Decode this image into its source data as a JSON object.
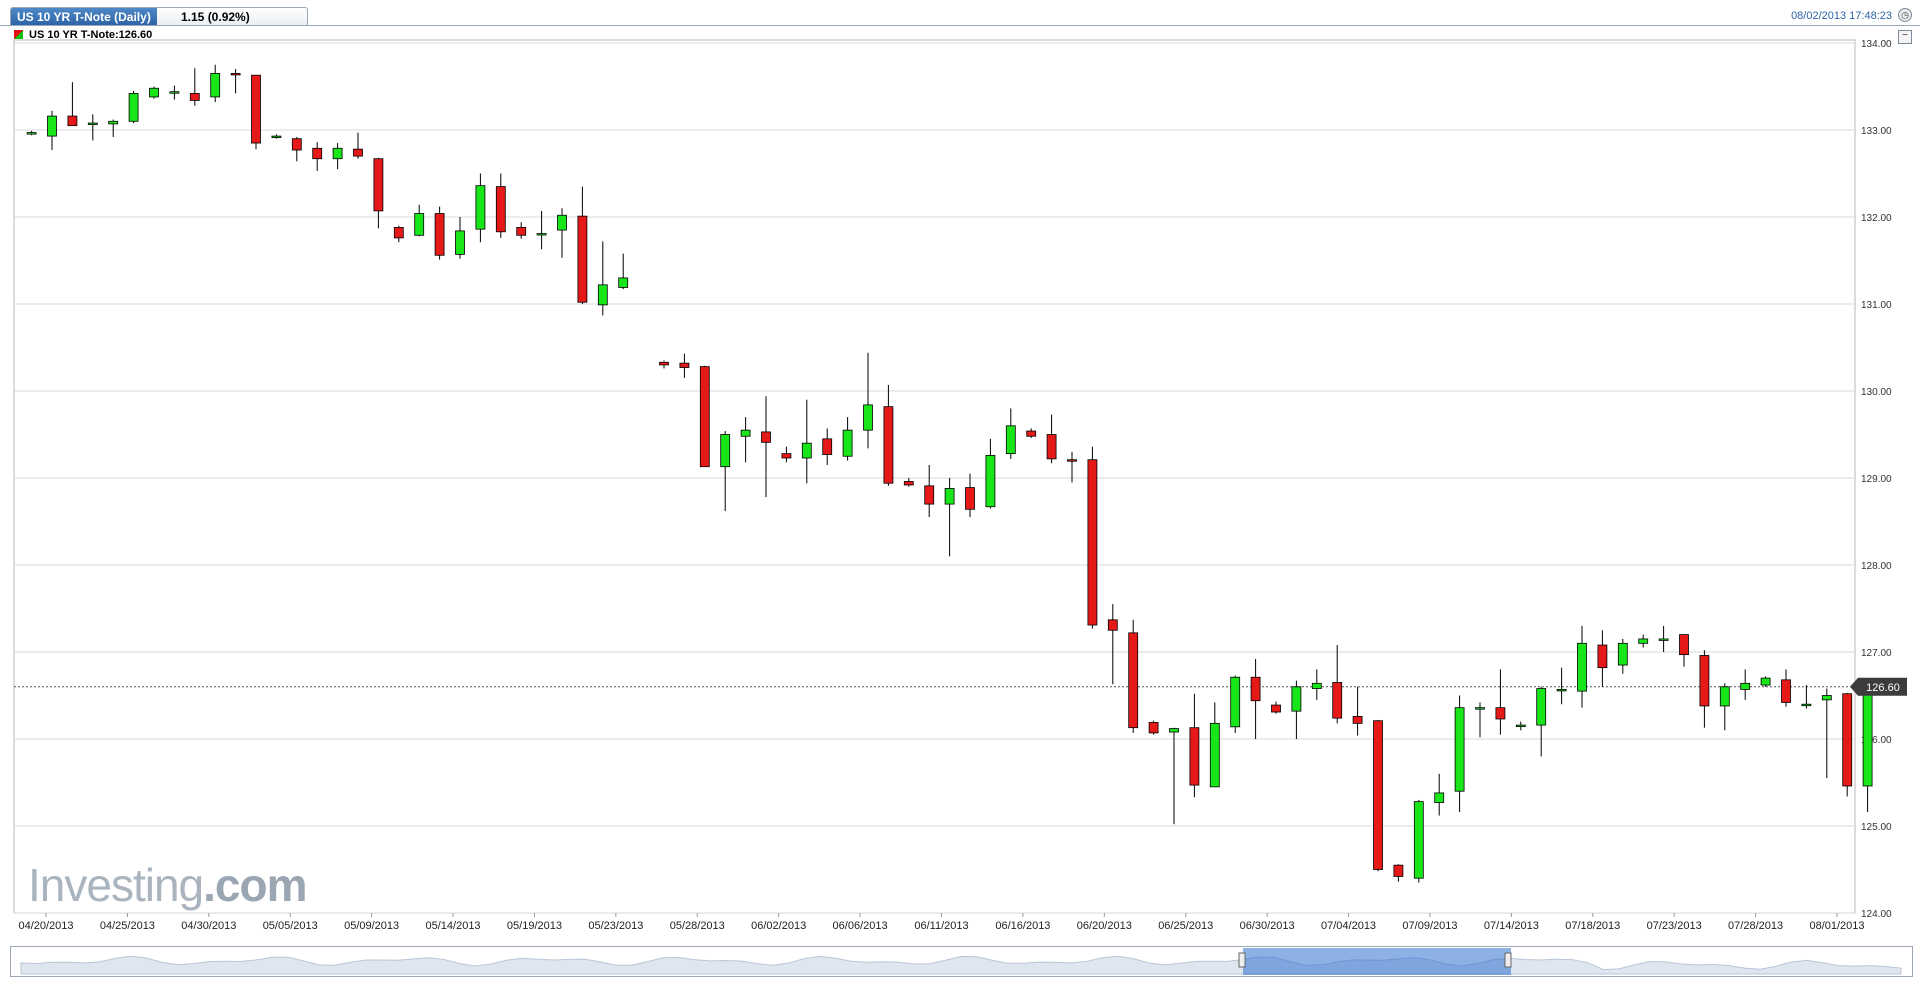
{
  "header": {
    "tab_title": "US 10 YR T-Note (Daily)",
    "tab_change": "1.15 (0.92%)",
    "timestamp": "08/02/2013 17:48:23"
  },
  "legend": {
    "label": "US 10 YR T-Note:126.60"
  },
  "watermark": {
    "brand": "Investing",
    "suffix": ".com"
  },
  "chart_data": {
    "type": "candlestick",
    "title": "US 10 YR T-Note (Daily)",
    "ylim": [
      124.0,
      134.0
    ],
    "y_ticks": [
      "124.00",
      "125.00",
      "126.00",
      "127.00",
      "128.00",
      "129.00",
      "130.00",
      "131.00",
      "132.00",
      "133.00",
      "134.00"
    ],
    "x_tick_labels": [
      "04/20/2013",
      "04/25/2013",
      "04/30/2013",
      "05/05/2013",
      "05/09/2013",
      "05/14/2013",
      "05/19/2013",
      "05/23/2013",
      "05/28/2013",
      "06/02/2013",
      "06/06/2013",
      "06/11/2013",
      "06/16/2013",
      "06/20/2013",
      "06/25/2013",
      "06/30/2013",
      "07/04/2013",
      "07/09/2013",
      "07/14/2013",
      "07/18/2013",
      "07/23/2013",
      "07/28/2013",
      "08/01/2013"
    ],
    "last_price": 126.6,
    "last_price_label": "126.60",
    "grid": true,
    "colors": {
      "up": "#19e619",
      "down": "#e61919",
      "grid": "#d9d9d9",
      "price_tag": "#3c3c3c"
    },
    "candles": [
      {
        "s": 0,
        "o": 132.96,
        "h": 132.99,
        "l": 132.94,
        "c": 132.97
      },
      {
        "s": 1,
        "o": 132.93,
        "h": 133.22,
        "l": 132.77,
        "c": 133.16
      },
      {
        "s": 2,
        "o": 133.16,
        "h": 133.55,
        "l": 133.05,
        "c": 133.05
      },
      {
        "s": 3,
        "o": 133.08,
        "h": 133.18,
        "l": 132.88,
        "c": 133.08
      },
      {
        "s": 4,
        "o": 133.07,
        "h": 133.12,
        "l": 132.92,
        "c": 133.1
      },
      {
        "s": 5,
        "o": 133.1,
        "h": 133.45,
        "l": 133.08,
        "c": 133.42
      },
      {
        "s": 6,
        "o": 133.38,
        "h": 133.5,
        "l": 133.36,
        "c": 133.48
      },
      {
        "s": 7,
        "o": 133.44,
        "h": 133.51,
        "l": 133.35,
        "c": 133.44
      },
      {
        "s": 8,
        "o": 133.42,
        "h": 133.71,
        "l": 133.28,
        "c": 133.34
      },
      {
        "s": 9,
        "o": 133.38,
        "h": 133.75,
        "l": 133.32,
        "c": 133.65
      },
      {
        "s": 10,
        "o": 133.65,
        "h": 133.7,
        "l": 133.42,
        "c": 133.64
      },
      {
        "s": 11,
        "o": 133.63,
        "h": 133.63,
        "l": 132.78,
        "c": 132.85
      },
      {
        "s": 12,
        "o": 132.92,
        "h": 132.95,
        "l": 132.9,
        "c": 132.93
      },
      {
        "s": 13,
        "o": 132.9,
        "h": 132.92,
        "l": 132.64,
        "c": 132.77
      },
      {
        "s": 14,
        "o": 132.79,
        "h": 132.86,
        "l": 132.53,
        "c": 132.67
      },
      {
        "s": 15,
        "o": 132.67,
        "h": 132.85,
        "l": 132.55,
        "c": 132.79
      },
      {
        "s": 16,
        "o": 132.78,
        "h": 132.97,
        "l": 132.67,
        "c": 132.7
      },
      {
        "s": 17,
        "o": 132.67,
        "h": 132.68,
        "l": 131.87,
        "c": 132.07
      },
      {
        "s": 18,
        "o": 131.88,
        "h": 131.9,
        "l": 131.71,
        "c": 131.76
      },
      {
        "s": 19,
        "o": 131.79,
        "h": 132.14,
        "l": 131.78,
        "c": 132.04
      },
      {
        "s": 20,
        "o": 132.04,
        "h": 132.12,
        "l": 131.51,
        "c": 131.56
      },
      {
        "s": 21,
        "o": 131.57,
        "h": 132.0,
        "l": 131.52,
        "c": 131.84
      },
      {
        "s": 22,
        "o": 131.86,
        "h": 132.5,
        "l": 131.71,
        "c": 132.36
      },
      {
        "s": 23,
        "o": 132.35,
        "h": 132.5,
        "l": 131.76,
        "c": 131.83
      },
      {
        "s": 24,
        "o": 131.88,
        "h": 131.94,
        "l": 131.75,
        "c": 131.79
      },
      {
        "s": 25,
        "o": 131.81,
        "h": 132.07,
        "l": 131.63,
        "c": 131.81
      },
      {
        "s": 26,
        "o": 131.85,
        "h": 132.1,
        "l": 131.53,
        "c": 132.02
      },
      {
        "s": 27,
        "o": 132.01,
        "h": 132.35,
        "l": 131.0,
        "c": 131.02
      },
      {
        "s": 28,
        "o": 130.99,
        "h": 131.72,
        "l": 130.87,
        "c": 131.22
      },
      {
        "s": 29,
        "o": 131.19,
        "h": 131.58,
        "l": 131.17,
        "c": 131.3
      },
      {
        "s": 31,
        "o": 130.33,
        "h": 130.35,
        "l": 130.26,
        "c": 130.3
      },
      {
        "s": 32,
        "o": 130.32,
        "h": 130.43,
        "l": 130.15,
        "c": 130.27
      },
      {
        "s": 33,
        "o": 130.28,
        "h": 130.29,
        "l": 129.13,
        "c": 129.13
      },
      {
        "s": 34,
        "o": 129.13,
        "h": 129.54,
        "l": 128.62,
        "c": 129.5
      },
      {
        "s": 35,
        "o": 129.48,
        "h": 129.7,
        "l": 129.18,
        "c": 129.55
      },
      {
        "s": 36,
        "o": 129.53,
        "h": 129.94,
        "l": 128.78,
        "c": 129.41
      },
      {
        "s": 37,
        "o": 129.28,
        "h": 129.36,
        "l": 129.18,
        "c": 129.23
      },
      {
        "s": 38,
        "o": 129.23,
        "h": 129.9,
        "l": 128.94,
        "c": 129.4
      },
      {
        "s": 39,
        "o": 129.45,
        "h": 129.57,
        "l": 129.15,
        "c": 129.27
      },
      {
        "s": 40,
        "o": 129.25,
        "h": 129.7,
        "l": 129.2,
        "c": 129.55
      },
      {
        "s": 41,
        "o": 129.55,
        "h": 130.44,
        "l": 129.34,
        "c": 129.84
      },
      {
        "s": 42,
        "o": 129.82,
        "h": 130.07,
        "l": 128.91,
        "c": 128.94
      },
      {
        "s": 43,
        "o": 128.96,
        "h": 129.0,
        "l": 128.9,
        "c": 128.92
      },
      {
        "s": 44,
        "o": 128.91,
        "h": 129.15,
        "l": 128.55,
        "c": 128.7
      },
      {
        "s": 45,
        "o": 128.7,
        "h": 129.0,
        "l": 128.1,
        "c": 128.88
      },
      {
        "s": 46,
        "o": 128.89,
        "h": 129.05,
        "l": 128.55,
        "c": 128.64
      },
      {
        "s": 47,
        "o": 128.67,
        "h": 129.45,
        "l": 128.65,
        "c": 129.26
      },
      {
        "s": 48,
        "o": 129.28,
        "h": 129.8,
        "l": 129.22,
        "c": 129.6
      },
      {
        "s": 49,
        "o": 129.54,
        "h": 129.57,
        "l": 129.46,
        "c": 129.48
      },
      {
        "s": 50,
        "o": 129.5,
        "h": 129.73,
        "l": 129.17,
        "c": 129.22
      },
      {
        "s": 51,
        "o": 129.21,
        "h": 129.3,
        "l": 128.95,
        "c": 129.2
      },
      {
        "s": 52,
        "o": 129.21,
        "h": 129.36,
        "l": 127.27,
        "c": 127.31
      },
      {
        "s": 53,
        "o": 127.37,
        "h": 127.55,
        "l": 126.63,
        "c": 127.25
      },
      {
        "s": 54,
        "o": 127.22,
        "h": 127.37,
        "l": 126.07,
        "c": 126.13
      },
      {
        "s": 55,
        "o": 126.19,
        "h": 126.21,
        "l": 126.05,
        "c": 126.07
      },
      {
        "s": 56,
        "o": 126.08,
        "h": 126.13,
        "l": 125.02,
        "c": 126.12
      },
      {
        "s": 57,
        "o": 126.13,
        "h": 126.52,
        "l": 125.33,
        "c": 125.47
      },
      {
        "s": 58,
        "o": 125.45,
        "h": 126.42,
        "l": 125.45,
        "c": 126.18
      },
      {
        "s": 59,
        "o": 126.14,
        "h": 126.73,
        "l": 126.07,
        "c": 126.71
      },
      {
        "s": 60,
        "o": 126.71,
        "h": 126.92,
        "l": 126.0,
        "c": 126.44
      },
      {
        "s": 61,
        "o": 126.39,
        "h": 126.43,
        "l": 126.29,
        "c": 126.31
      },
      {
        "s": 62,
        "o": 126.32,
        "h": 126.67,
        "l": 126.0,
        "c": 126.6
      },
      {
        "s": 63,
        "o": 126.58,
        "h": 126.8,
        "l": 126.45,
        "c": 126.64
      },
      {
        "s": 64,
        "o": 126.65,
        "h": 127.08,
        "l": 126.18,
        "c": 126.24
      },
      {
        "s": 65,
        "o": 126.26,
        "h": 126.6,
        "l": 126.04,
        "c": 126.18
      },
      {
        "s": 66,
        "o": 126.21,
        "h": 126.22,
        "l": 124.48,
        "c": 124.5
      },
      {
        "s": 67,
        "o": 124.55,
        "h": 124.56,
        "l": 124.36,
        "c": 124.42
      },
      {
        "s": 68,
        "o": 124.4,
        "h": 125.3,
        "l": 124.35,
        "c": 125.28
      },
      {
        "s": 69,
        "o": 125.27,
        "h": 125.6,
        "l": 125.12,
        "c": 125.38
      },
      {
        "s": 70,
        "o": 125.4,
        "h": 126.5,
        "l": 125.16,
        "c": 126.36
      },
      {
        "s": 71,
        "o": 126.36,
        "h": 126.42,
        "l": 126.02,
        "c": 126.36
      },
      {
        "s": 72,
        "o": 126.36,
        "h": 126.8,
        "l": 126.05,
        "c": 126.23
      },
      {
        "s": 73,
        "o": 126.15,
        "h": 126.2,
        "l": 126.1,
        "c": 126.16
      },
      {
        "s": 74,
        "o": 126.16,
        "h": 126.6,
        "l": 125.8,
        "c": 126.58
      },
      {
        "s": 75,
        "o": 126.57,
        "h": 126.82,
        "l": 126.4,
        "c": 126.57
      },
      {
        "s": 76,
        "o": 126.55,
        "h": 127.3,
        "l": 126.36,
        "c": 127.1
      },
      {
        "s": 77,
        "o": 127.08,
        "h": 127.25,
        "l": 126.6,
        "c": 126.82
      },
      {
        "s": 78,
        "o": 126.85,
        "h": 127.15,
        "l": 126.75,
        "c": 127.1
      },
      {
        "s": 79,
        "o": 127.1,
        "h": 127.2,
        "l": 127.05,
        "c": 127.15
      },
      {
        "s": 80,
        "o": 127.15,
        "h": 127.3,
        "l": 127.0,
        "c": 127.15
      },
      {
        "s": 81,
        "o": 127.2,
        "h": 127.2,
        "l": 126.83,
        "c": 126.97
      },
      {
        "s": 82,
        "o": 126.96,
        "h": 127.02,
        "l": 126.13,
        "c": 126.38
      },
      {
        "s": 83,
        "o": 126.38,
        "h": 126.64,
        "l": 126.1,
        "c": 126.6
      },
      {
        "s": 84,
        "o": 126.57,
        "h": 126.8,
        "l": 126.45,
        "c": 126.64
      },
      {
        "s": 85,
        "o": 126.62,
        "h": 126.72,
        "l": 126.6,
        "c": 126.7
      },
      {
        "s": 86,
        "o": 126.68,
        "h": 126.8,
        "l": 126.37,
        "c": 126.42
      },
      {
        "s": 87,
        "o": 126.4,
        "h": 126.62,
        "l": 126.35,
        "c": 126.4
      },
      {
        "s": 88,
        "o": 126.45,
        "h": 126.58,
        "l": 125.55,
        "c": 126.5
      },
      {
        "s": 89,
        "o": 126.52,
        "h": 126.53,
        "l": 125.34,
        "c": 125.46
      },
      {
        "s": 90,
        "o": 125.46,
        "h": 126.61,
        "l": 125.16,
        "c": 126.6
      }
    ]
  }
}
